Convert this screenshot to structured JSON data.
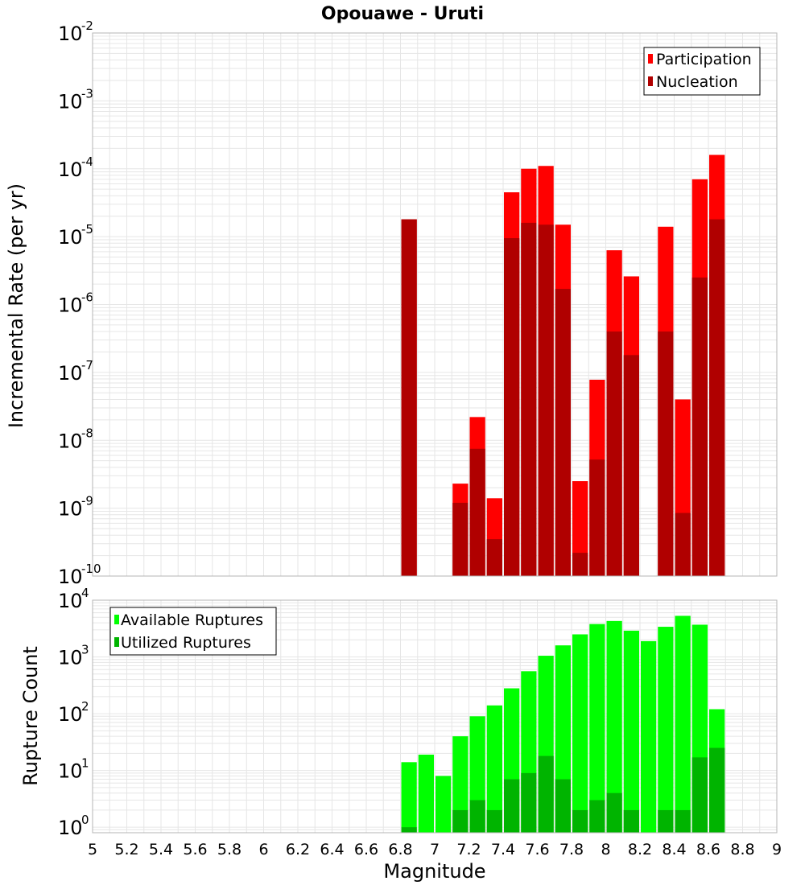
{
  "colors": {
    "participation": "#ff0000",
    "nucleation": "#b00000",
    "available": "#00ff00",
    "utilized": "#00b400",
    "grid": "#e6e6e6",
    "frame": "#b4b4b4"
  },
  "chart_data": [
    {
      "type": "bar",
      "title": "Opouawe - Uruti",
      "xlabel": "",
      "ylabel": "Incremental Rate (per yr)",
      "xlim": [
        5,
        9
      ],
      "ylim": [
        1e-10,
        0.01
      ],
      "yscale": "log",
      "yticks": [
        {
          "base": "10",
          "exp": "-10"
        },
        {
          "base": "10",
          "exp": "-9"
        },
        {
          "base": "10",
          "exp": "-8"
        },
        {
          "base": "10",
          "exp": "-7"
        },
        {
          "base": "10",
          "exp": "-6"
        },
        {
          "base": "10",
          "exp": "-5"
        },
        {
          "base": "10",
          "exp": "-4"
        },
        {
          "base": "10",
          "exp": "-3"
        },
        {
          "base": "10",
          "exp": "-2"
        }
      ],
      "grid": true,
      "legend_position": "top-right",
      "series": [
        {
          "name": "Participation",
          "x": [
            6.85,
            7.15,
            7.25,
            7.35,
            7.45,
            7.55,
            7.65,
            7.75,
            7.85,
            7.95,
            8.05,
            8.15,
            8.35,
            8.45,
            8.55,
            8.65
          ],
          "values": [
            1.8e-05,
            2.3e-09,
            2.2e-08,
            1.4e-09,
            4.5e-05,
            0.0001,
            0.00011,
            1.5e-05,
            2.5e-09,
            7.8e-08,
            6.3e-06,
            2.6e-06,
            1.4e-05,
            4e-08,
            7e-05,
            0.00016
          ]
        },
        {
          "name": "Nucleation",
          "x": [
            6.85,
            7.15,
            7.25,
            7.35,
            7.45,
            7.55,
            7.65,
            7.75,
            7.85,
            7.95,
            8.05,
            8.15,
            8.35,
            8.45,
            8.55,
            8.65
          ],
          "values": [
            1.8e-05,
            1.2e-09,
            7.5e-09,
            3.5e-10,
            9.5e-06,
            1.6e-05,
            1.5e-05,
            1.7e-06,
            2.2e-10,
            5.2e-09,
            4e-07,
            1.8e-07,
            4e-07,
            8.5e-10,
            2.5e-06,
            1.8e-05
          ]
        }
      ]
    },
    {
      "type": "bar",
      "title": "",
      "xlabel": "Magnitude",
      "ylabel": "Rupture Count",
      "xlim": [
        5,
        9
      ],
      "ylim": [
        0.8,
        10000
      ],
      "yscale": "log",
      "xticks": [
        "5",
        "5.2",
        "5.4",
        "5.6",
        "5.8",
        "6",
        "6.2",
        "6.4",
        "6.6",
        "6.8",
        "7",
        "7.2",
        "7.4",
        "7.6",
        "7.8",
        "8",
        "8.2",
        "8.4",
        "8.6",
        "8.8",
        "9"
      ],
      "yticks": [
        {
          "base": "10",
          "exp": "0"
        },
        {
          "base": "10",
          "exp": "1"
        },
        {
          "base": "10",
          "exp": "2"
        },
        {
          "base": "10",
          "exp": "3"
        },
        {
          "base": "10",
          "exp": "4"
        }
      ],
      "grid": true,
      "legend_position": "top-left",
      "series": [
        {
          "name": "Available Ruptures",
          "x": [
            6.85,
            6.95,
            7.05,
            7.15,
            7.25,
            7.35,
            7.45,
            7.55,
            7.65,
            7.75,
            7.85,
            7.95,
            8.05,
            8.15,
            8.25,
            8.35,
            8.45,
            8.55,
            8.65
          ],
          "values": [
            14,
            19,
            8,
            40,
            90,
            140,
            280,
            560,
            1050,
            1600,
            2500,
            3800,
            4300,
            2900,
            1900,
            3400,
            5300,
            3700,
            120
          ]
        },
        {
          "name": "Utilized Ruptures",
          "x": [
            6.85,
            6.95,
            7.05,
            7.15,
            7.25,
            7.35,
            7.45,
            7.55,
            7.65,
            7.75,
            7.85,
            7.95,
            8.05,
            8.15,
            8.25,
            8.35,
            8.45,
            8.55,
            8.65
          ],
          "values": [
            1,
            0,
            0,
            2,
            3,
            2,
            7,
            9,
            18,
            7,
            2,
            3,
            4,
            2,
            0,
            2,
            2,
            17,
            25
          ]
        }
      ]
    }
  ]
}
